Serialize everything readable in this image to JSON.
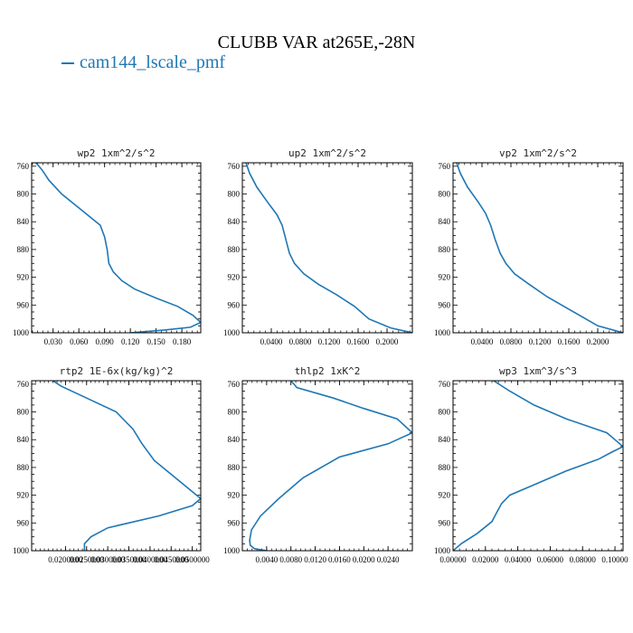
{
  "figure": {
    "title": "CLUBB VAR at265E,-28N",
    "legend_label": "cam144_lscale_pmf",
    "line_color": "#1f77b4"
  },
  "chart_data": [
    {
      "type": "line",
      "title": "wp2   1xm^2/s^2",
      "xlim": [
        0.005,
        0.202
      ],
      "ylim": [
        1000,
        755
      ],
      "xticks": [
        0.03,
        0.06,
        0.09,
        0.12,
        0.15,
        0.18
      ],
      "xtick_labels": [
        "0.030",
        "0.060",
        "0.090",
        "0.120",
        "0.150",
        "0.180"
      ],
      "yticks": [
        760,
        800,
        840,
        880,
        920,
        960,
        1000
      ],
      "series": [
        {
          "x": [
            0.01,
            0.017,
            0.025,
            0.04,
            0.06,
            0.085,
            0.09,
            0.093,
            0.095,
            0.1,
            0.11,
            0.125,
            0.15,
            0.175,
            0.193,
            0.202,
            0.19,
            0.16,
            0.12
          ],
          "y": [
            755,
            765,
            780,
            800,
            820,
            845,
            862,
            880,
            900,
            912,
            925,
            937,
            950,
            962,
            975,
            985,
            992,
            996,
            1000
          ]
        }
      ]
    },
    {
      "type": "line",
      "title": "up2   1xm^2/s^2",
      "xlim": [
        0.0,
        0.235
      ],
      "ylim": [
        1000,
        755
      ],
      "xticks": [
        0.04,
        0.08,
        0.12,
        0.16,
        0.2
      ],
      "xtick_labels": [
        "0.0400",
        "0.0800",
        "0.1200",
        "0.1600",
        "0.2000"
      ],
      "yticks": [
        760,
        800,
        840,
        880,
        920,
        960,
        1000
      ],
      "series": [
        {
          "x": [
            0.005,
            0.01,
            0.02,
            0.035,
            0.048,
            0.055,
            0.06,
            0.065,
            0.072,
            0.085,
            0.105,
            0.13,
            0.155,
            0.175,
            0.205,
            0.235
          ],
          "y": [
            755,
            770,
            790,
            812,
            830,
            845,
            865,
            885,
            900,
            915,
            930,
            945,
            962,
            980,
            993,
            1000
          ]
        }
      ]
    },
    {
      "type": "line",
      "title": "vp2   1xm^2/s^2",
      "xlim": [
        0.0,
        0.235
      ],
      "ylim": [
        1000,
        755
      ],
      "xticks": [
        0.04,
        0.08,
        0.12,
        0.16,
        0.2
      ],
      "xtick_labels": [
        "0.0400",
        "0.0800",
        "0.1200",
        "0.1600",
        "0.2000"
      ],
      "yticks": [
        760,
        800,
        840,
        880,
        920,
        960,
        1000
      ],
      "series": [
        {
          "x": [
            0.005,
            0.01,
            0.02,
            0.035,
            0.045,
            0.052,
            0.058,
            0.065,
            0.073,
            0.085,
            0.105,
            0.13,
            0.16,
            0.2,
            0.235
          ],
          "y": [
            755,
            770,
            790,
            812,
            828,
            845,
            865,
            885,
            900,
            915,
            930,
            948,
            966,
            990,
            1000
          ]
        }
      ]
    },
    {
      "type": "line",
      "title": "rtp2   1E-6x(kg/kg)^2",
      "xlim": [
        0.012,
        0.052
      ],
      "ylim": [
        1000,
        755
      ],
      "xticks": [
        0.02,
        0.025,
        0.03,
        0.035,
        0.04,
        0.045,
        0.05
      ],
      "xtick_labels": [
        "0.0200000",
        "0.0250000",
        "0.0300000",
        "0.0350000",
        "0.0400000",
        "0.0450000",
        "0.0500000"
      ],
      "yticks": [
        760,
        800,
        840,
        880,
        920,
        960,
        1000
      ],
      "series": [
        {
          "x": [
            0.017,
            0.019,
            0.025,
            0.032,
            0.036,
            0.038,
            0.041,
            0.046,
            0.05,
            0.052,
            0.05,
            0.042,
            0.03,
            0.026,
            0.0245,
            0.0245
          ],
          "y": [
            755,
            763,
            780,
            800,
            825,
            845,
            870,
            895,
            915,
            925,
            935,
            950,
            967,
            980,
            990,
            1000
          ]
        }
      ]
    },
    {
      "type": "line",
      "title": "thlp2   1xK^2",
      "xlim": [
        0.0,
        0.028
      ],
      "ylim": [
        1000,
        755
      ],
      "xticks": [
        0.004,
        0.008,
        0.012,
        0.016,
        0.02,
        0.024
      ],
      "xtick_labels": [
        "0.0040",
        "0.0080",
        "0.0120",
        "0.0160",
        "0.0200",
        "0.0240"
      ],
      "yticks": [
        760,
        800,
        840,
        880,
        920,
        960,
        1000
      ],
      "series": [
        {
          "x": [
            0.008,
            0.009,
            0.015,
            0.02,
            0.0255,
            0.028,
            0.024,
            0.016,
            0.01,
            0.006,
            0.003,
            0.0015,
            0.0012,
            0.0013,
            0.002,
            0.004
          ],
          "y": [
            755,
            765,
            780,
            795,
            810,
            830,
            846,
            865,
            895,
            925,
            950,
            970,
            985,
            992,
            997,
            1000
          ]
        }
      ]
    },
    {
      "type": "line",
      "title": "wp3   1xm^3/s^3",
      "xlim": [
        0.0,
        0.105
      ],
      "ylim": [
        1000,
        755
      ],
      "xticks": [
        0.0,
        0.02,
        0.04,
        0.06,
        0.08,
        0.1
      ],
      "xtick_labels": [
        "0.00000",
        "0.02000",
        "0.04000",
        "0.06000",
        "0.08000",
        "0.10000"
      ],
      "yticks": [
        760,
        800,
        840,
        880,
        920,
        960,
        1000
      ],
      "series": [
        {
          "x": [
            0.025,
            0.035,
            0.05,
            0.07,
            0.095,
            0.1,
            0.105,
            0.098,
            0.09,
            0.07,
            0.05,
            0.035,
            0.03,
            0.027,
            0.024,
            0.015,
            0.005,
            0.0
          ],
          "y": [
            755,
            770,
            790,
            810,
            830,
            840,
            850,
            858,
            868,
            885,
            905,
            920,
            932,
            945,
            958,
            975,
            990,
            1000
          ]
        }
      ]
    }
  ]
}
